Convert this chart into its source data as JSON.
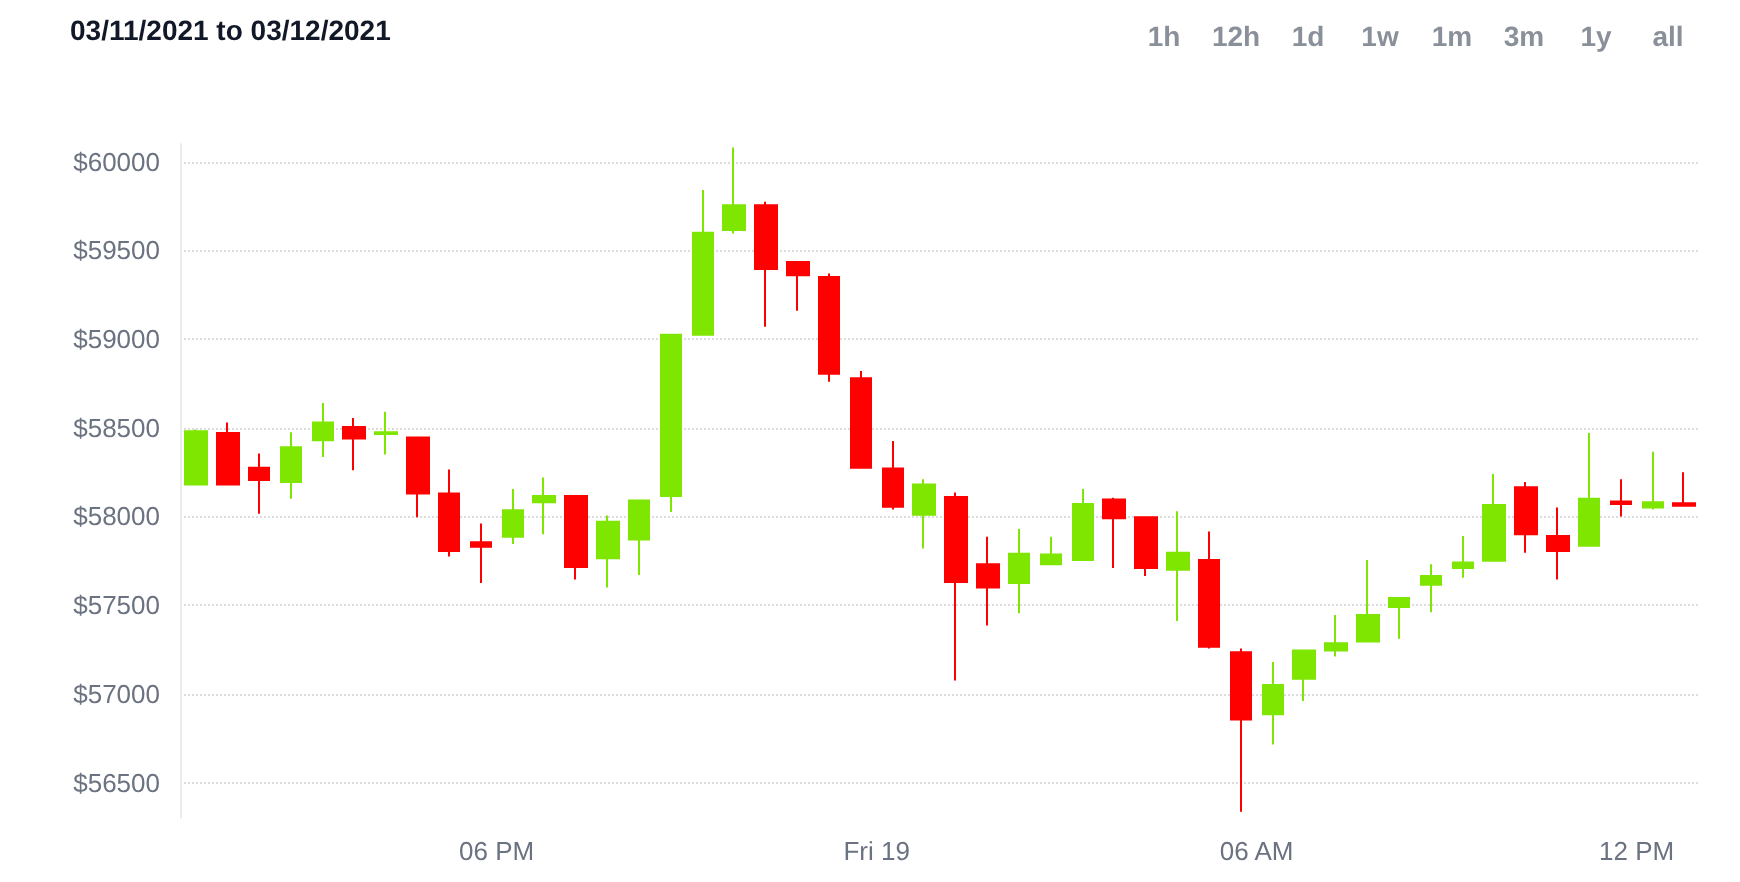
{
  "chart_data": {
    "type": "candlestick",
    "title": "03/11/2021 to 03/12/2021",
    "annotations": [
      "1h",
      "12h",
      "1d",
      "1w",
      "1m",
      "3m",
      "1y",
      "all"
    ],
    "x": [
      "2021-03-18T13:15",
      "2021-03-18T13:45",
      "2021-03-18T14:15",
      "2021-03-18T14:45",
      "2021-03-18T15:15",
      "2021-03-18T15:45",
      "2021-03-18T16:15",
      "2021-03-18T16:45",
      "2021-03-18T17:15",
      "2021-03-18T17:45",
      "2021-03-18T18:15",
      "2021-03-18T18:45",
      "2021-03-18T19:15",
      "2021-03-18T19:45",
      "2021-03-18T20:15",
      "2021-03-18T20:45",
      "2021-03-18T21:15",
      "2021-03-18T21:45",
      "2021-03-18T22:15",
      "2021-03-18T22:45",
      "2021-03-18T23:15",
      "2021-03-18T23:45",
      "2021-03-19T00:15",
      "2021-03-19T00:45",
      "2021-03-19T01:15",
      "2021-03-19T01:45",
      "2021-03-19T02:15",
      "2021-03-19T02:45",
      "2021-03-19T03:15",
      "2021-03-19T03:45",
      "2021-03-19T04:15",
      "2021-03-19T04:45",
      "2021-03-19T05:15",
      "2021-03-19T05:45",
      "2021-03-19T06:15",
      "2021-03-19T06:45",
      "2021-03-19T07:15",
      "2021-03-19T07:45",
      "2021-03-19T08:15",
      "2021-03-19T08:45",
      "2021-03-19T09:15",
      "2021-03-19T09:45",
      "2021-03-19T10:15",
      "2021-03-19T10:45",
      "2021-03-19T11:15",
      "2021-03-19T11:45",
      "2021-03-19T12:15",
      "2021-03-19T12:45"
    ],
    "ohlc": [
      [
        58180,
        58490,
        58180,
        58480
      ],
      [
        58470,
        58530,
        58180,
        58180
      ],
      [
        58275,
        58355,
        58015,
        58205
      ],
      [
        58195,
        58475,
        58100,
        58390
      ],
      [
        58430,
        58640,
        58335,
        58530
      ],
      [
        58505,
        58555,
        58260,
        58440
      ],
      [
        58465,
        58590,
        58350,
        58475
      ],
      [
        58445,
        58450,
        57995,
        58130
      ],
      [
        58130,
        58265,
        57775,
        57805
      ],
      [
        57855,
        57960,
        57625,
        57830
      ],
      [
        57885,
        58155,
        57845,
        58035
      ],
      [
        58080,
        58220,
        57900,
        58115
      ],
      [
        58115,
        58115,
        57645,
        57715
      ],
      [
        57765,
        58005,
        57600,
        57970
      ],
      [
        57870,
        58090,
        57670,
        58090
      ],
      [
        58115,
        59030,
        58025,
        59025
      ],
      [
        59025,
        59840,
        59020,
        59600
      ],
      [
        59615,
        60080,
        59595,
        59755
      ],
      [
        59755,
        59775,
        59070,
        59395
      ],
      [
        59435,
        59440,
        59160,
        59360
      ],
      [
        59350,
        59370,
        58760,
        58805
      ],
      [
        58780,
        58820,
        58270,
        58275
      ],
      [
        58270,
        58425,
        58040,
        58055
      ],
      [
        58010,
        58210,
        57820,
        58180
      ],
      [
        58110,
        58135,
        57075,
        57630
      ],
      [
        57730,
        57885,
        57385,
        57600
      ],
      [
        57625,
        57930,
        57455,
        57790
      ],
      [
        57730,
        57885,
        57730,
        57785
      ],
      [
        57755,
        58155,
        57755,
        58070
      ],
      [
        58095,
        58105,
        57710,
        57990
      ],
      [
        57995,
        57995,
        57665,
        57710
      ],
      [
        57700,
        58030,
        57410,
        57795
      ],
      [
        57755,
        57915,
        57255,
        57265
      ],
      [
        57235,
        57255,
        56335,
        56855
      ],
      [
        56885,
        57180,
        56715,
        57050
      ],
      [
        57085,
        57245,
        56960,
        57245
      ],
      [
        57245,
        57445,
        57210,
        57285
      ],
      [
        57295,
        57755,
        57295,
        57445
      ],
      [
        57490,
        57545,
        57310,
        57540
      ],
      [
        57615,
        57730,
        57460,
        57665
      ],
      [
        57710,
        57890,
        57655,
        57740
      ],
      [
        57750,
        58240,
        57750,
        58065
      ],
      [
        58165,
        58195,
        57795,
        57900
      ],
      [
        57890,
        58050,
        57645,
        57805
      ],
      [
        57835,
        58470,
        57835,
        58100
      ],
      [
        58085,
        58210,
        58000,
        58070
      ],
      [
        58050,
        58365,
        58040,
        58080
      ],
      [
        58075,
        58250,
        58060,
        58060
      ]
    ],
    "colors": [
      "#7ee600",
      "#ff0000",
      "#ff0000",
      "#7ee600",
      "#7ee600",
      "#ff0000",
      "#7ee600",
      "#ff0000",
      "#ff0000",
      "#ff0000",
      "#7ee600",
      "#7ee600",
      "#ff0000",
      "#7ee600",
      "#7ee600",
      "#7ee600",
      "#7ee600",
      "#7ee600",
      "#ff0000",
      "#ff0000",
      "#ff0000",
      "#ff0000",
      "#ff0000",
      "#7ee600",
      "#ff0000",
      "#ff0000",
      "#7ee600",
      "#7ee600",
      "#7ee600",
      "#ff0000",
      "#ff0000",
      "#7ee600",
      "#ff0000",
      "#ff0000",
      "#7ee600",
      "#7ee600",
      "#7ee600",
      "#7ee600",
      "#7ee600",
      "#7ee600",
      "#7ee600",
      "#7ee600",
      "#ff0000",
      "#ff0000",
      "#7ee600",
      "#ff0000",
      "#7ee600",
      "#ff0000"
    ],
    "xlim": [
      "2021-03-18T13:00",
      "2021-03-19T13:00"
    ],
    "xticks": [
      {
        "value": "2021-03-18T18:00",
        "label": "06 PM"
      },
      {
        "value": "2021-03-19T00:00",
        "label": "Fri 19"
      },
      {
        "value": "2021-03-19T06:00",
        "label": "06 AM"
      },
      {
        "value": "2021-03-19T12:00",
        "label": "12 PM"
      }
    ],
    "ylim": [
      56300,
      60100
    ],
    "yticks": [
      {
        "value": 56500,
        "label": "$56500"
      },
      {
        "value": 57000,
        "label": "$57000"
      },
      {
        "value": 57500,
        "label": "$57500"
      },
      {
        "value": 58000,
        "label": "$58000"
      },
      {
        "value": 58500,
        "label": "$58500"
      },
      {
        "value": 59000,
        "label": "$59000"
      },
      {
        "value": 59500,
        "label": "$59500"
      },
      {
        "value": 60000,
        "label": "$60000"
      }
    ],
    "grid": "y"
  }
}
